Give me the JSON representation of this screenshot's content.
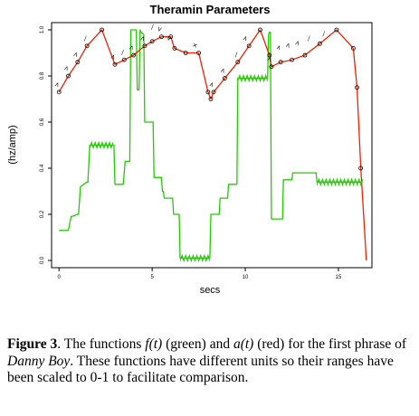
{
  "chart_data": {
    "type": "line",
    "title": "Theramin Parameters",
    "xlabel": "secs",
    "ylabel": "(hz/amp)",
    "xlim": [
      -0.4,
      16.8
    ],
    "ylim": [
      0,
      1.0
    ],
    "x_ticks": [
      "0",
      "5",
      "10",
      "15"
    ],
    "y_ticks": [
      "0.0",
      "0.2",
      "0.4",
      "0.6",
      "0.8",
      "1.0"
    ],
    "grid": false,
    "series": [
      {
        "color": "#22cc00",
        "points": [
          [
            0,
            0.13
          ],
          [
            0.4,
            0.13
          ],
          [
            0.5,
            0.13
          ],
          [
            0.65,
            0.19
          ],
          [
            1.0,
            0.2
          ],
          [
            1.05,
            0.2
          ],
          [
            1.15,
            0.32
          ],
          [
            1.5,
            0.34
          ],
          [
            1.55,
            0.34
          ],
          [
            1.65,
            0.5
          ],
          [
            2.9,
            0.5
          ],
          [
            2.95,
            0.5
          ],
          [
            3.0,
            0.33
          ],
          [
            3.4,
            0.33
          ],
          [
            3.45,
            0.33
          ],
          [
            3.55,
            0.43
          ],
          [
            3.8,
            0.43
          ],
          [
            3.85,
            1.0
          ],
          [
            4.15,
            1.0
          ],
          [
            4.2,
            0.74
          ],
          [
            4.3,
            0.74
          ],
          [
            4.35,
            1.0
          ],
          [
            4.4,
            0.99
          ],
          [
            4.55,
            0.98
          ],
          [
            4.6,
            0.6
          ],
          [
            5.05,
            0.6
          ],
          [
            5.1,
            0.36
          ],
          [
            5.5,
            0.36
          ],
          [
            5.55,
            0.3
          ],
          [
            5.6,
            0.3
          ],
          [
            5.65,
            0.27
          ],
          [
            6.1,
            0.27
          ],
          [
            6.15,
            0.2
          ],
          [
            6.45,
            0.2
          ],
          [
            6.5,
            0.01
          ],
          [
            8.1,
            0.01
          ],
          [
            8.15,
            0.2
          ],
          [
            8.6,
            0.2
          ],
          [
            8.65,
            0.27
          ],
          [
            9.05,
            0.27
          ],
          [
            9.1,
            0.33
          ],
          [
            9.55,
            0.33
          ],
          [
            9.6,
            0.79
          ],
          [
            11.2,
            0.79
          ],
          [
            11.25,
            0.98
          ],
          [
            11.3,
            0.99
          ],
          [
            11.35,
            0.99
          ],
          [
            11.4,
            0.18
          ],
          [
            12.0,
            0.18
          ],
          [
            12.05,
            0.35
          ],
          [
            12.5,
            0.35
          ],
          [
            12.55,
            0.38
          ],
          [
            13.8,
            0.38
          ],
          [
            13.85,
            0.34
          ],
          [
            16.3,
            0.34
          ]
        ]
      },
      {
        "color": "#ee2200",
        "points": [
          [
            0,
            0.73
          ],
          [
            0.5,
            0.8
          ],
          [
            1.0,
            0.86
          ],
          [
            1.5,
            0.93
          ],
          [
            2.3,
            1.0
          ],
          [
            3.0,
            0.85
          ],
          [
            3.5,
            0.87
          ],
          [
            4.0,
            0.89
          ],
          [
            4.6,
            0.93
          ],
          [
            5.0,
            0.95
          ],
          [
            5.5,
            0.97
          ],
          [
            6.0,
            0.97
          ],
          [
            6.2,
            0.92
          ],
          [
            6.8,
            0.9
          ],
          [
            7.5,
            0.9
          ],
          [
            8.0,
            0.73
          ],
          [
            8.15,
            0.7
          ],
          [
            8.3,
            0.73
          ],
          [
            8.9,
            0.79
          ],
          [
            9.6,
            0.86
          ],
          [
            10.2,
            0.93
          ],
          [
            10.8,
            1.0
          ],
          [
            11.3,
            0.89
          ],
          [
            11.4,
            0.84
          ],
          [
            11.9,
            0.86
          ],
          [
            12.5,
            0.87
          ],
          [
            13.2,
            0.89
          ],
          [
            14.0,
            0.94
          ],
          [
            14.9,
            1.0
          ],
          [
            15.8,
            0.92
          ],
          [
            16.0,
            0.75
          ],
          [
            16.2,
            0.4
          ],
          [
            16.5,
            0.0
          ]
        ]
      }
    ],
    "markers": [
      {
        "x": 0,
        "y": 0.76,
        "symbol": ">"
      },
      {
        "x": 0.5,
        "y": 0.83,
        "symbol": ">"
      },
      {
        "x": 1.0,
        "y": 0.89,
        "symbol": ">"
      },
      {
        "x": 1.5,
        "y": 0.96,
        "symbol": "—"
      },
      {
        "x": 3.0,
        "y": 0.88,
        "symbol": ">"
      },
      {
        "x": 3.5,
        "y": 0.9,
        "symbol": "—"
      },
      {
        "x": 4.0,
        "y": 0.92,
        "symbol": ">"
      },
      {
        "x": 4.6,
        "y": 0.96,
        "symbol": ">"
      },
      {
        "x": 5.1,
        "y": 1.01,
        "symbol": "—"
      },
      {
        "x": 5.5,
        "y": 1.0,
        "symbol": "<"
      },
      {
        "x": 6.0,
        "y": 0.96,
        "symbol": "<"
      },
      {
        "x": 7.4,
        "y": 0.93,
        "symbol": "×"
      },
      {
        "x": 8.3,
        "y": 0.76,
        "symbol": ">"
      },
      {
        "x": 8.9,
        "y": 0.82,
        "symbol": ">"
      },
      {
        "x": 9.6,
        "y": 0.89,
        "symbol": "—"
      },
      {
        "x": 10.1,
        "y": 0.96,
        "symbol": ">"
      },
      {
        "x": 11.4,
        "y": 0.87,
        "symbol": ">"
      },
      {
        "x": 11.9,
        "y": 0.92,
        "symbol": ">"
      },
      {
        "x": 12.4,
        "y": 0.93,
        "symbol": ">"
      },
      {
        "x": 12.9,
        "y": 0.94,
        "symbol": ">"
      },
      {
        "x": 13.5,
        "y": 0.96,
        "symbol": "—"
      },
      {
        "x": 14.3,
        "y": 0.98,
        "symbol": "—"
      }
    ]
  },
  "caption": {
    "figure_number": "Figure 3",
    "text_1": ". The functions ",
    "f_t": "f(t)",
    "text_2": " (green) and ",
    "a_t": "a(t)",
    "text_3": " (red) for the first phrase of ",
    "song": "Danny Boy",
    "text_4": ".  These functions have different units so their ranges have been scaled to 0-1 to facilitate comparison."
  }
}
